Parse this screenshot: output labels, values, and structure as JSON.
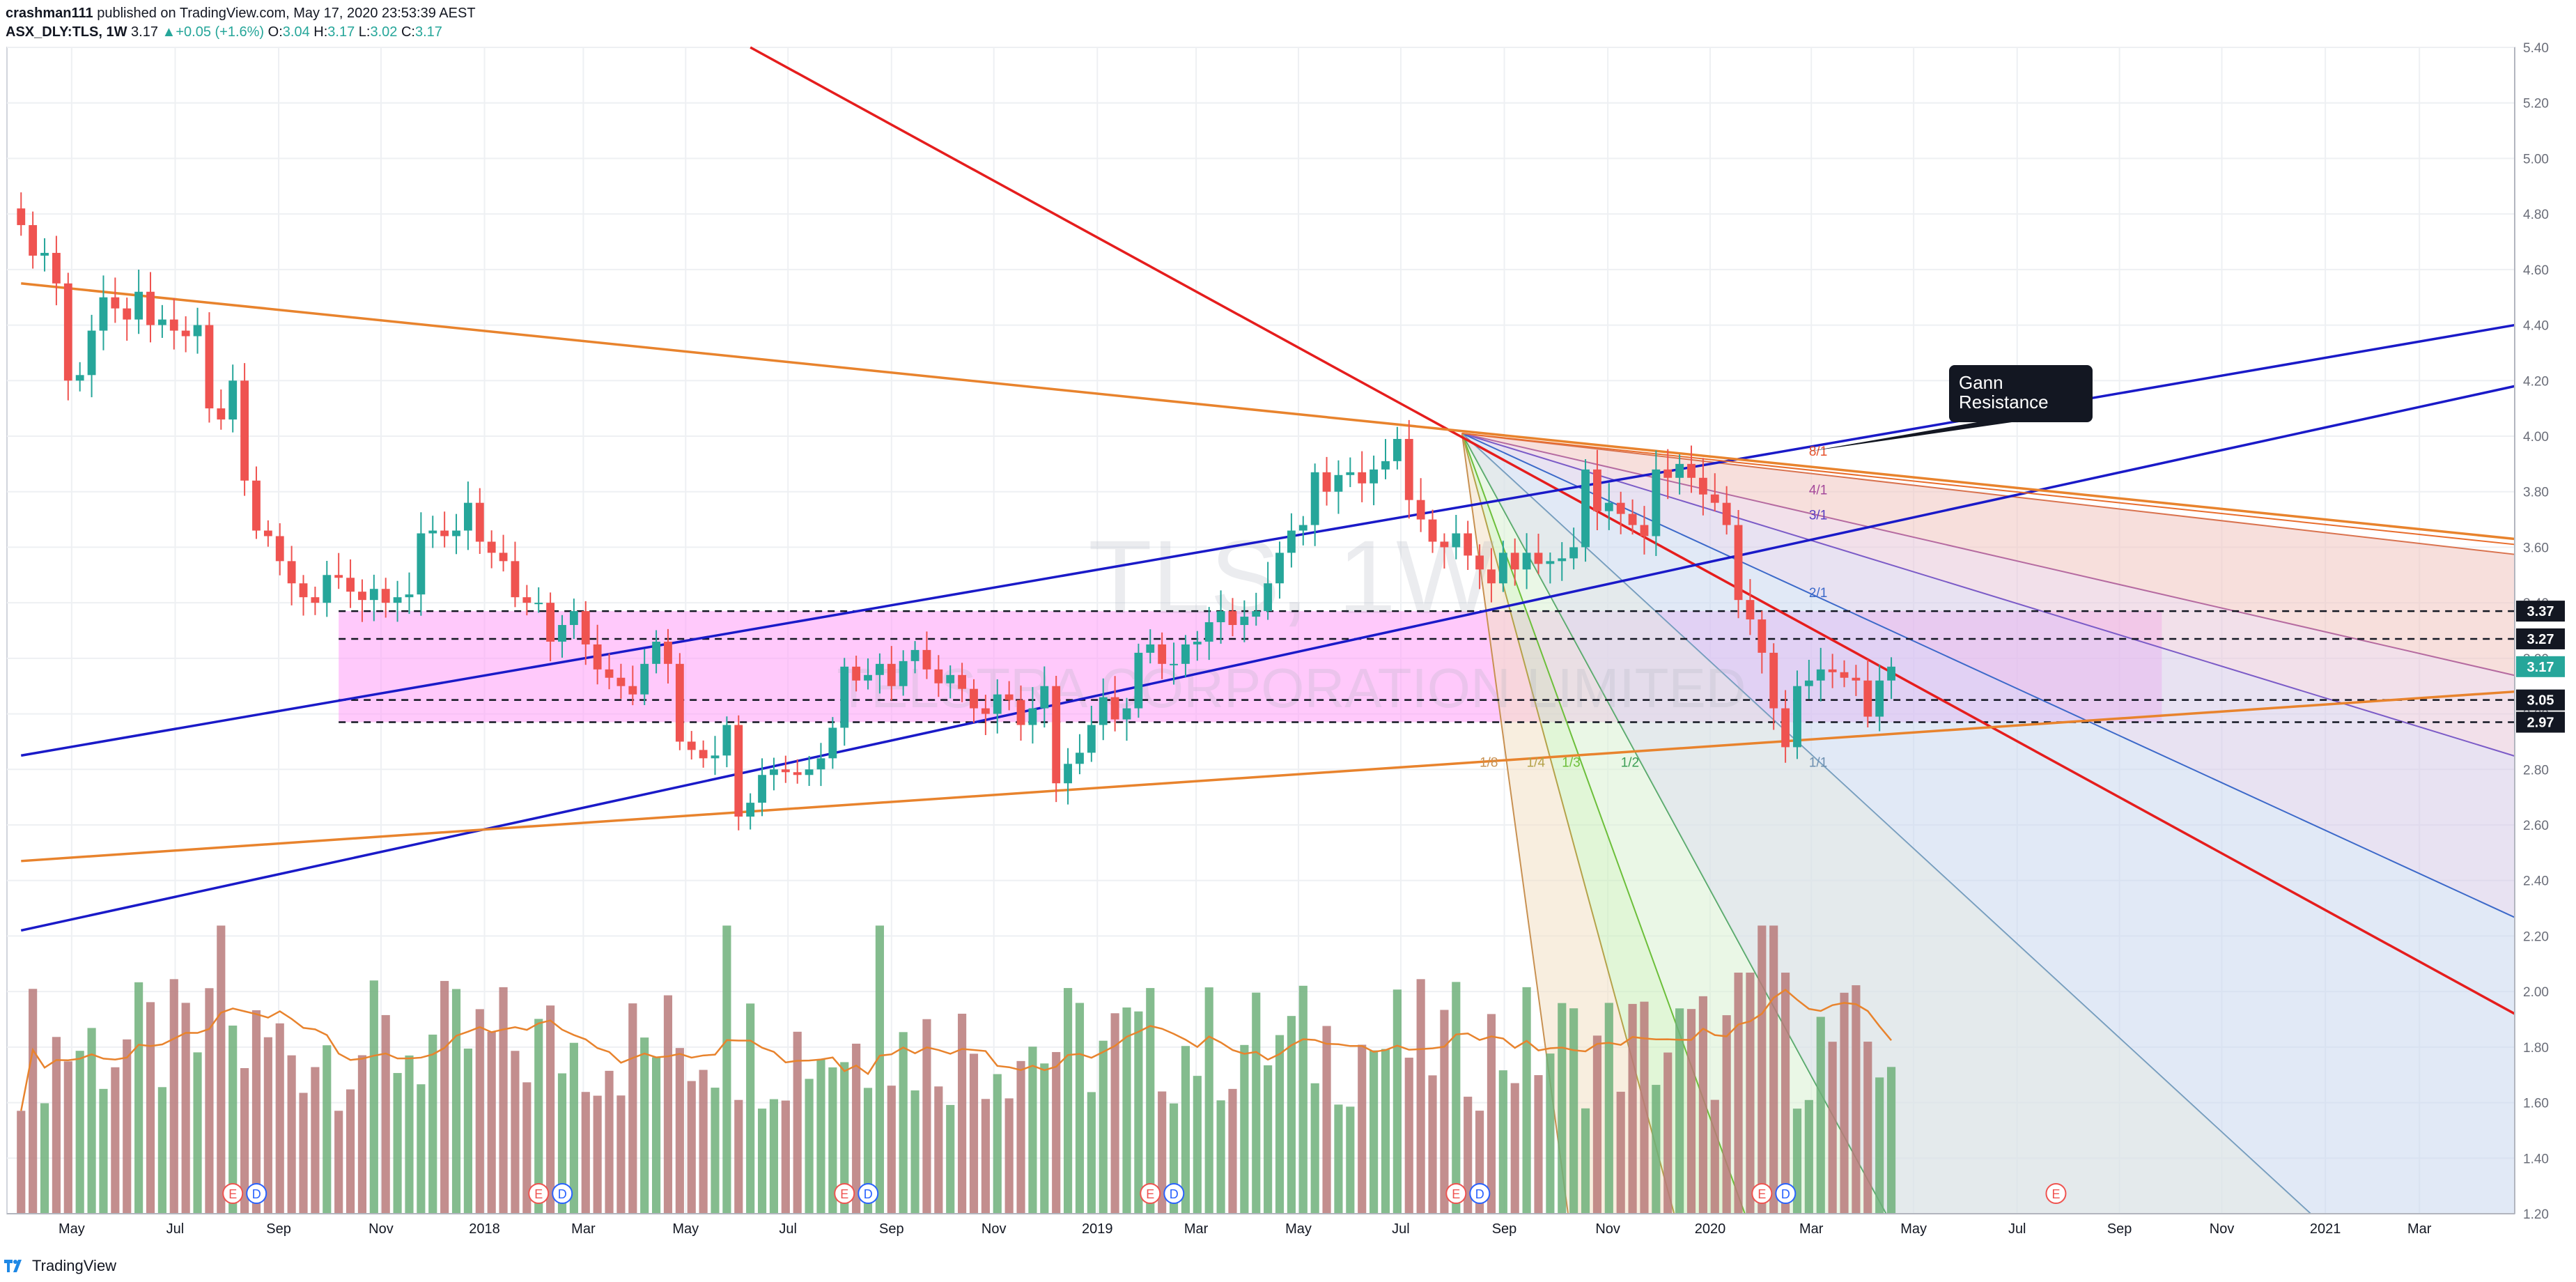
{
  "header": {
    "author": "crashman111",
    "published_text": "published on TradingView.com, May 17, 2020 23:53:39 AEST",
    "symbol": "ASX_DLY:TLS, 1W",
    "last": "3.17",
    "change_arrow": "▲",
    "change": "+0.05 (+1.6%)",
    "open_label": "O:",
    "open": "3.04",
    "high_label": "H:",
    "high": "3.17",
    "low_label": "L:",
    "low": "3.02",
    "close_label": "C:",
    "close": "3.17"
  },
  "footer": {
    "brand": "TradingView"
  },
  "colors": {
    "up": "#26a69a",
    "down": "#ef5350",
    "vol_up": "#6fb07a",
    "vol_down": "#b97a7a",
    "red_line": "#e51d1d",
    "blue_line": "#1a1ac8",
    "orange_line": "#e8832d",
    "zone": "#ff9cf8",
    "grid": "#eef0f3"
  },
  "watermark": {
    "symbol": "TLS, 1W",
    "name": "TELSTRA CORPORATION LIMITED"
  },
  "chart_data": {
    "type": "candlestick",
    "y_ticks": [
      "5.40",
      "5.20",
      "5.00",
      "4.80",
      "4.60",
      "4.40",
      "4.20",
      "4.00",
      "3.80",
      "3.60",
      "3.40",
      "3.20",
      "3.00",
      "2.80",
      "2.60",
      "2.40",
      "2.20",
      "2.00",
      "1.80",
      "1.60",
      "1.40",
      "1.20"
    ],
    "ylim": [
      1.2,
      5.4
    ],
    "x_ticks": [
      "May",
      "Jul",
      "Sep",
      "Nov",
      "2018",
      "Mar",
      "May",
      "Jul",
      "Sep",
      "Nov",
      "2019",
      "Mar",
      "May",
      "Jul",
      "Sep",
      "Nov",
      "2020",
      "Mar",
      "May",
      "Jul",
      "Sep",
      "Nov",
      "2021",
      "Mar"
    ],
    "x_tick_weeks": [
      4.3,
      13.1,
      21.9,
      30.6,
      39.4,
      47.8,
      56.5,
      65.2,
      74.0,
      82.7,
      91.5,
      99.9,
      108.6,
      117.3,
      126.1,
      134.9,
      143.6,
      152.2,
      160.9,
      169.7,
      178.4,
      187.1,
      195.9,
      203.9
    ],
    "price_labels": [
      {
        "text": "3.37",
        "value": 3.37
      },
      {
        "text": "3.27",
        "value": 3.27
      },
      {
        "text": "3.17",
        "value": 3.17,
        "style": "last"
      },
      {
        "text": "3.05",
        "value": 3.05
      },
      {
        "text": "2.97",
        "value": 2.97
      }
    ],
    "horizontal_dashed_levels": [
      3.37,
      3.27,
      3.05,
      2.97
    ],
    "zone": {
      "from_week": 27,
      "to_week": 182,
      "low": 2.97,
      "high": 3.37
    },
    "ohlc_weekly_close_path": [
      4.76,
      4.65,
      4.66,
      4.55,
      4.2,
      4.22,
      4.38,
      4.5,
      4.46,
      4.42,
      4.52,
      4.4,
      4.42,
      4.38,
      4.36,
      4.4,
      4.1,
      4.06,
      4.2,
      3.84,
      3.66,
      3.64,
      3.55,
      3.47,
      3.42,
      3.4,
      3.5,
      3.49,
      3.44,
      3.41,
      3.45,
      3.4,
      3.42,
      3.43,
      3.65,
      3.66,
      3.64,
      3.66,
      3.76,
      3.62,
      3.58,
      3.55,
      3.42,
      3.4,
      3.4,
      3.26,
      3.32,
      3.37,
      3.25,
      3.16,
      3.13,
      3.1,
      3.07,
      3.18,
      3.26,
      3.18,
      2.9,
      2.87,
      2.84,
      2.85,
      2.96,
      2.63,
      2.68,
      2.78,
      2.8,
      2.79,
      2.78,
      2.8,
      2.84,
      2.95,
      3.17,
      3.12,
      3.14,
      3.18,
      3.1,
      3.19,
      3.23,
      3.16,
      3.11,
      3.14,
      3.09,
      3.02,
      3.0,
      3.07,
      3.05,
      2.96,
      3.02,
      3.1,
      2.75,
      2.82,
      2.86,
      2.96,
      3.06,
      2.98,
      3.02,
      3.22,
      3.25,
      3.18,
      3.18,
      3.25,
      3.26,
      3.33,
      3.37,
      3.32,
      3.35,
      3.37,
      3.47,
      3.58,
      3.66,
      3.68,
      3.87,
      3.8,
      3.86,
      3.87,
      3.83,
      3.88,
      3.91,
      3.99,
      3.77,
      3.7,
      3.62,
      3.6,
      3.65,
      3.57,
      3.52,
      3.47,
      3.58,
      3.52,
      3.58,
      3.54,
      3.55,
      3.56,
      3.6,
      3.88,
      3.73,
      3.76,
      3.72,
      3.68,
      3.64,
      3.88,
      3.85,
      3.9,
      3.85,
      3.79,
      3.76,
      3.68,
      3.41,
      3.34,
      3.22,
      3.02,
      2.88,
      3.1,
      3.12,
      3.16,
      3.15,
      3.13,
      3.12,
      2.99,
      3.12,
      3.17
    ],
    "volume_axis": "overlay",
    "earnings_markers": [
      {
        "week": 18,
        "labels": [
          "E",
          "D"
        ]
      },
      {
        "week": 44,
        "labels": [
          "E",
          "D"
        ]
      },
      {
        "week": 70,
        "labels": [
          "E",
          "D"
        ]
      },
      {
        "week": 96,
        "labels": [
          "E",
          "D"
        ]
      },
      {
        "week": 122,
        "labels": [
          "E",
          "D"
        ]
      },
      {
        "week": 148,
        "labels": [
          "E",
          "D"
        ]
      },
      {
        "week": 173,
        "labels": [
          "E"
        ]
      }
    ],
    "trend_lines": [
      {
        "name": "red",
        "from": {
          "week": 62,
          "price": 5.4
        },
        "to": {
          "week": 212,
          "price": 1.92
        }
      },
      {
        "name": "blue-1",
        "from": {
          "week": 0,
          "price": 2.85
        },
        "to": {
          "week": 212,
          "price": 4.4
        }
      },
      {
        "name": "blue-2",
        "from": {
          "week": 0,
          "price": 2.22
        },
        "to": {
          "week": 212,
          "price": 4.18
        }
      },
      {
        "name": "orange-top",
        "from": {
          "week": 0,
          "price": 4.55
        },
        "to": {
          "week": 212,
          "price": 3.63
        }
      },
      {
        "name": "orange-bottom",
        "from": {
          "week": 0,
          "price": 2.47
        },
        "to": {
          "week": 212,
          "price": 3.08
        }
      }
    ],
    "gann_fan": {
      "origin": {
        "week": 122.5,
        "price": 4.01
      },
      "labels": [
        "8/1",
        "4/1",
        "3/1",
        "2/1",
        "1/1",
        "1/2",
        "1/3",
        "1/4",
        "1/8"
      ]
    },
    "annotation": {
      "text_line1": "Gann",
      "text_line2": "Resistance"
    }
  }
}
